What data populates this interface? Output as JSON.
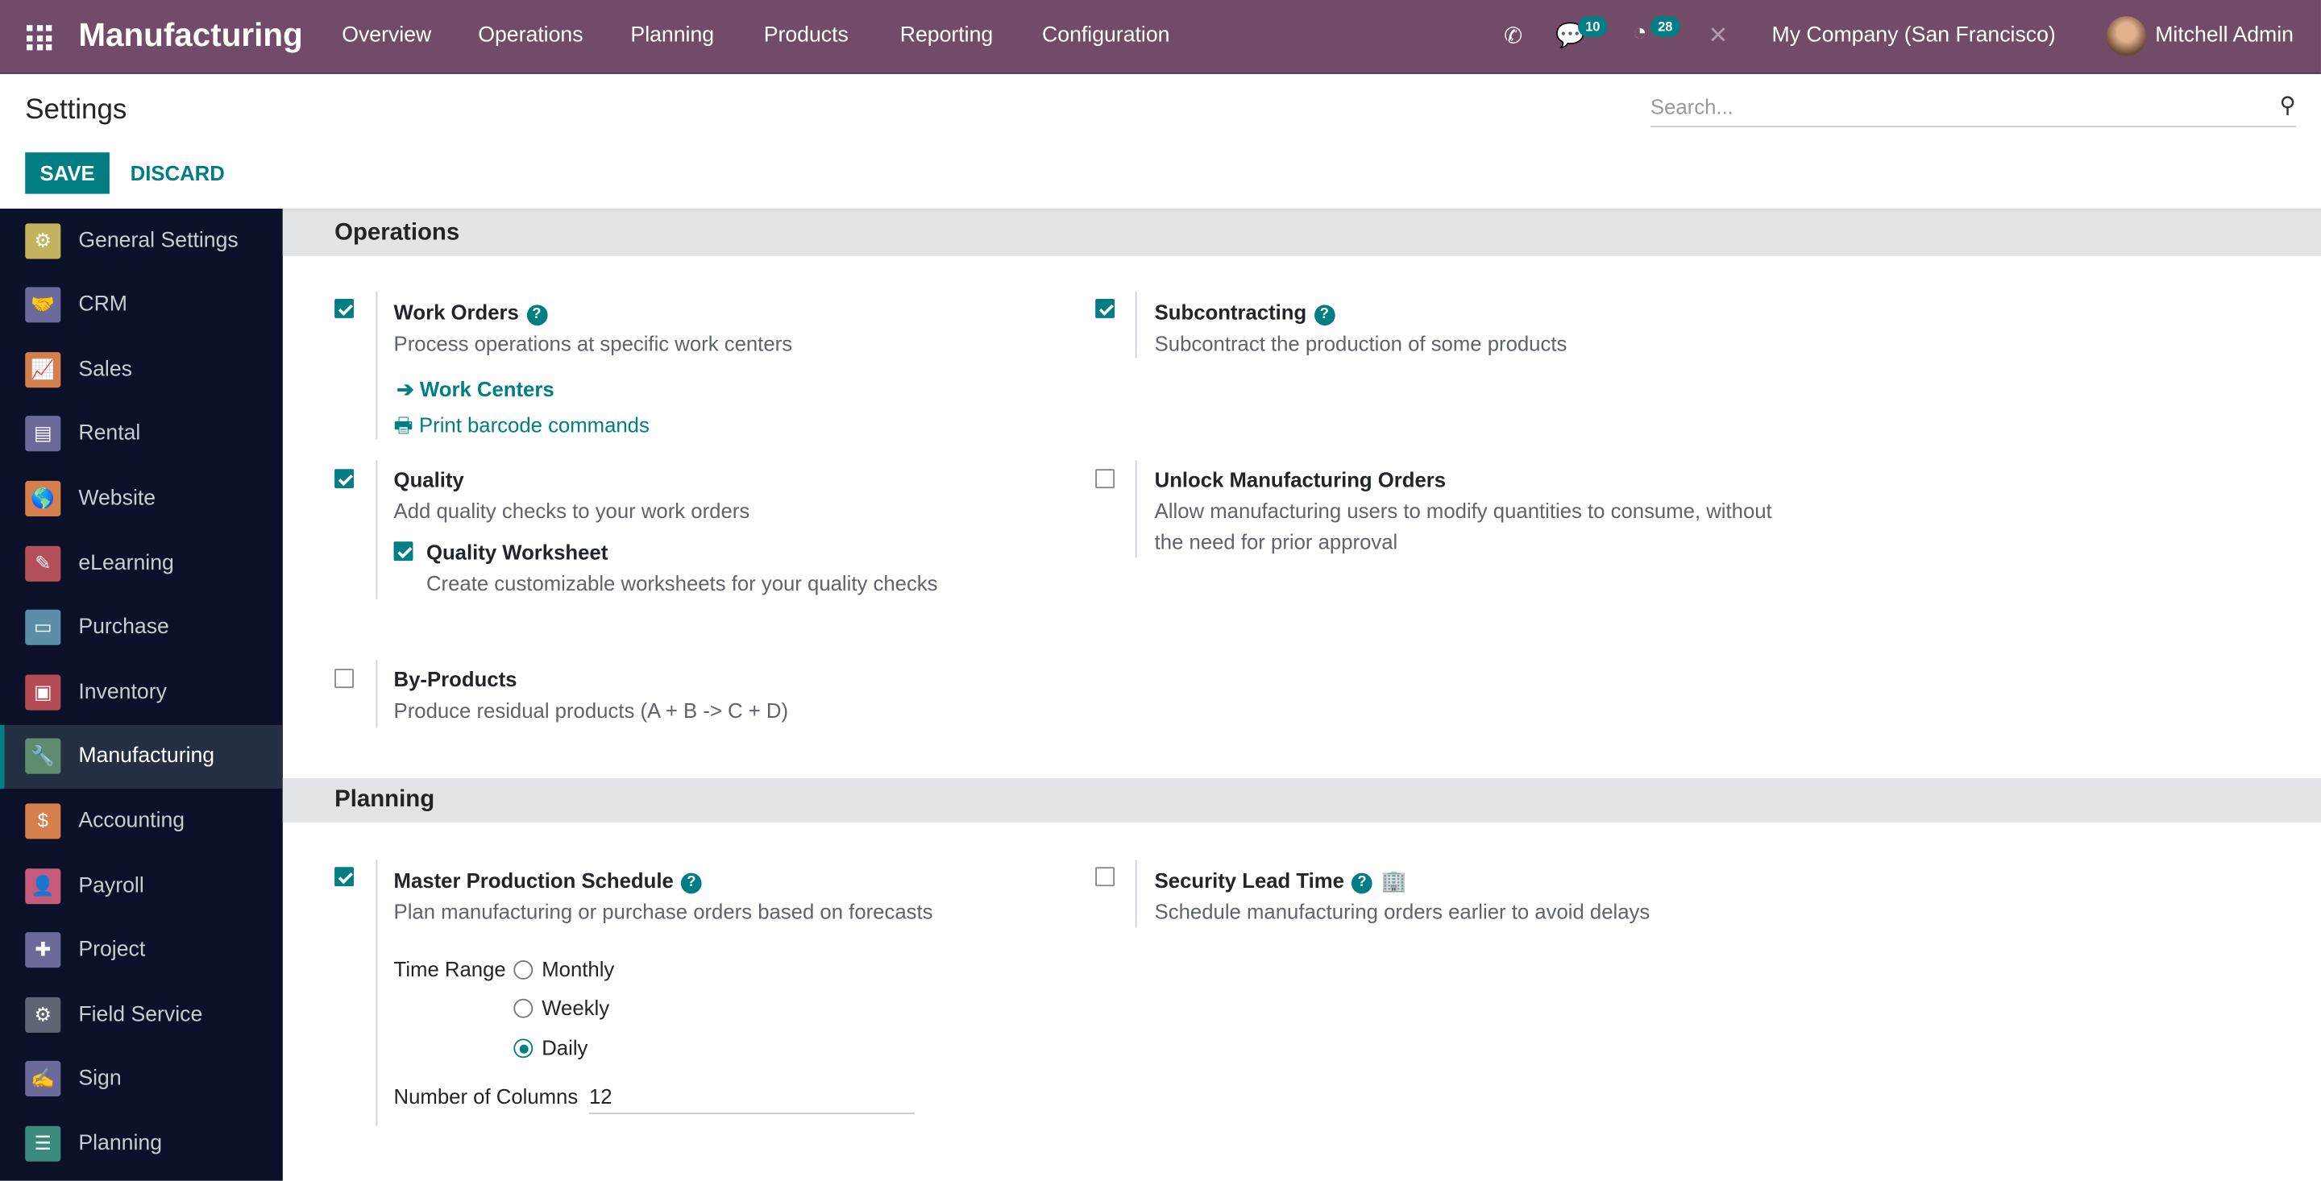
{
  "navbar": {
    "app": "Manufacturing",
    "menu": [
      "Overview",
      "Operations",
      "Planning",
      "Products",
      "Reporting",
      "Configuration"
    ],
    "messages_count": "10",
    "activities_count": "28",
    "company": "My Company (San Francisco)",
    "user": "Mitchell Admin",
    "color": "#714b67"
  },
  "control": {
    "title": "Settings",
    "save": "SAVE",
    "discard": "DISCARD",
    "search_placeholder": "Search..."
  },
  "sidebar": {
    "items": [
      {
        "label": "General Settings",
        "color": "#c4b35e",
        "icon": "⚙"
      },
      {
        "label": "CRM",
        "color": "#6b6a9a",
        "icon": "🤝"
      },
      {
        "label": "Sales",
        "color": "#d5804c",
        "icon": "📈"
      },
      {
        "label": "Rental",
        "color": "#6b6a9a",
        "icon": "▤"
      },
      {
        "label": "Website",
        "color": "#d5804c",
        "icon": "🌎"
      },
      {
        "label": "eLearning",
        "color": "#b45059",
        "icon": "✎"
      },
      {
        "label": "Purchase",
        "color": "#5b8fa8",
        "icon": "▭"
      },
      {
        "label": "Inventory",
        "color": "#b44b55",
        "icon": "▣"
      },
      {
        "label": "Manufacturing",
        "color": "#5e8c6f",
        "icon": "🔧"
      },
      {
        "label": "Accounting",
        "color": "#d5804c",
        "icon": "$"
      },
      {
        "label": "Payroll",
        "color": "#c65a7b",
        "icon": "👤"
      },
      {
        "label": "Project",
        "color": "#6b6a9a",
        "icon": "✚"
      },
      {
        "label": "Field Service",
        "color": "#5f6475",
        "icon": "⚙"
      },
      {
        "label": "Sign",
        "color": "#6b6a9a",
        "icon": "✍"
      },
      {
        "label": "Planning",
        "color": "#3b8b80",
        "icon": "☰"
      }
    ],
    "active": "Manufacturing"
  },
  "operations": {
    "header": "Operations",
    "work_orders": {
      "title": "Work Orders",
      "desc": "Process operations at specific work centers",
      "checked": true,
      "link1": "Work Centers",
      "link2": "Print barcode commands"
    },
    "subcontracting": {
      "title": "Subcontracting",
      "desc": "Subcontract the production of some products",
      "checked": true
    },
    "quality": {
      "title": "Quality",
      "desc": "Add quality checks to your work orders",
      "checked": true,
      "sub_title": "Quality Worksheet",
      "sub_desc": "Create customizable worksheets for your quality checks",
      "sub_checked": true
    },
    "unlock": {
      "title": "Unlock Manufacturing Orders",
      "desc1": "Allow manufacturing users to modify quantities to consume, without",
      "desc2": "the need for prior approval",
      "checked": false
    },
    "byproducts": {
      "title": "By-Products",
      "desc": "Produce residual products (A + B -> C + D)",
      "checked": false
    }
  },
  "planning": {
    "header": "Planning",
    "mps": {
      "title": "Master Production Schedule",
      "desc": "Plan manufacturing or purchase orders based on forecasts",
      "checked": true,
      "time_range_label": "Time Range",
      "options": [
        "Monthly",
        "Weekly",
        "Daily"
      ],
      "selected": "Daily",
      "columns_label": "Number of Columns",
      "columns_value": "12"
    },
    "lead_time": {
      "title": "Security Lead Time",
      "desc": "Schedule manufacturing orders earlier to avoid delays",
      "checked": false
    }
  }
}
